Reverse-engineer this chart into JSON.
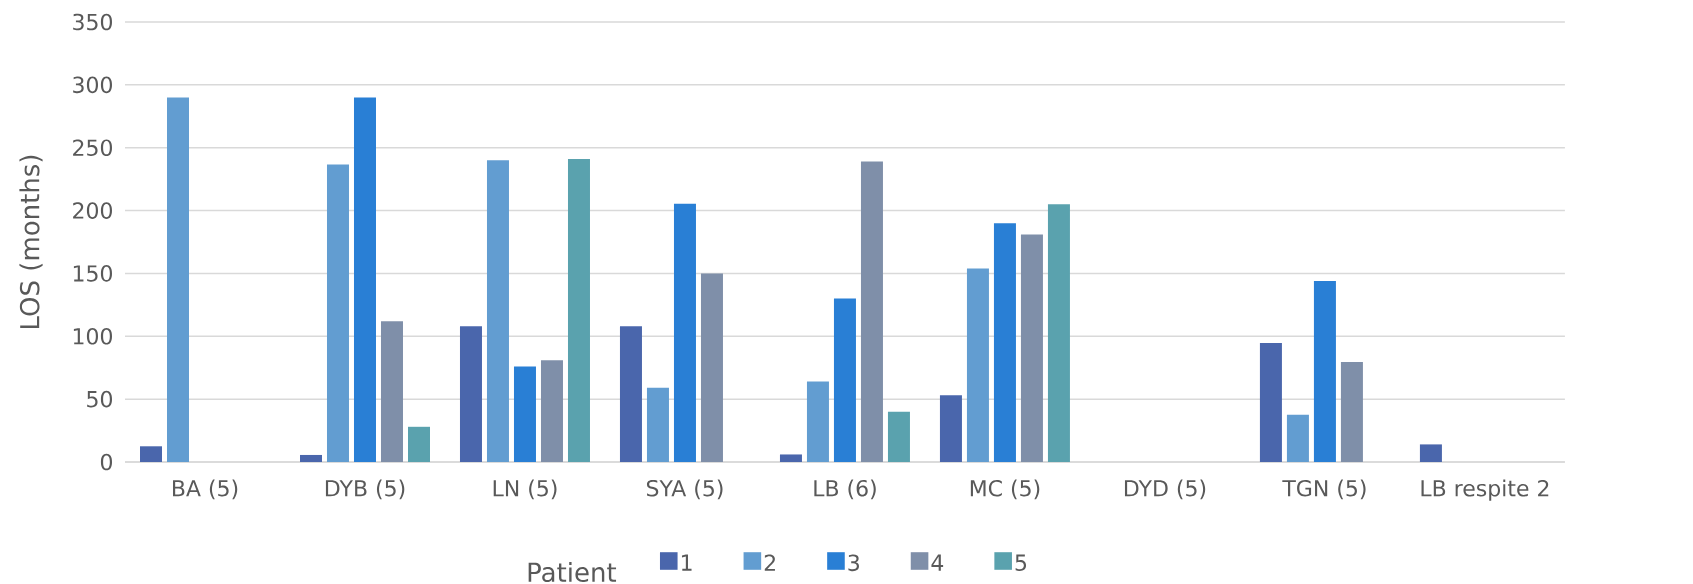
{
  "chart_data": {
    "type": "bar",
    "ylabel": "LOS (months)",
    "xlabel": "Patient",
    "categories": [
      "BA (5)",
      "DYB (5)",
      "LN (5)",
      "SYA (5)",
      "LB (6)",
      "MC (5)",
      "DYD (5)",
      "TGN (5)",
      "LB respite 2"
    ],
    "series": [
      {
        "name": "1",
        "color": "#4a66ac",
        "values": [
          12.5,
          5.6,
          108,
          108,
          6,
          53,
          null,
          94.6,
          14
        ]
      },
      {
        "name": "2",
        "color": "#629dd1",
        "values": [
          290,
          236.6,
          240,
          59,
          64,
          154,
          null,
          37.6,
          null
        ]
      },
      {
        "name": "3",
        "color": "#297fd5",
        "values": [
          null,
          290,
          76,
          205.5,
          130,
          190,
          null,
          144,
          null
        ]
      },
      {
        "name": "4",
        "color": "#7f8fa9",
        "values": [
          null,
          112,
          81,
          150,
          239,
          181,
          null,
          79.5,
          null
        ]
      },
      {
        "name": "5",
        "color": "#5aa2ae",
        "values": [
          null,
          28,
          241,
          null,
          40,
          205,
          null,
          null,
          null
        ]
      }
    ],
    "ylim": [
      0,
      350
    ],
    "yticks": [
      0,
      50,
      100,
      150,
      200,
      250,
      300,
      350
    ],
    "grid": "y",
    "legend": "bottom"
  }
}
